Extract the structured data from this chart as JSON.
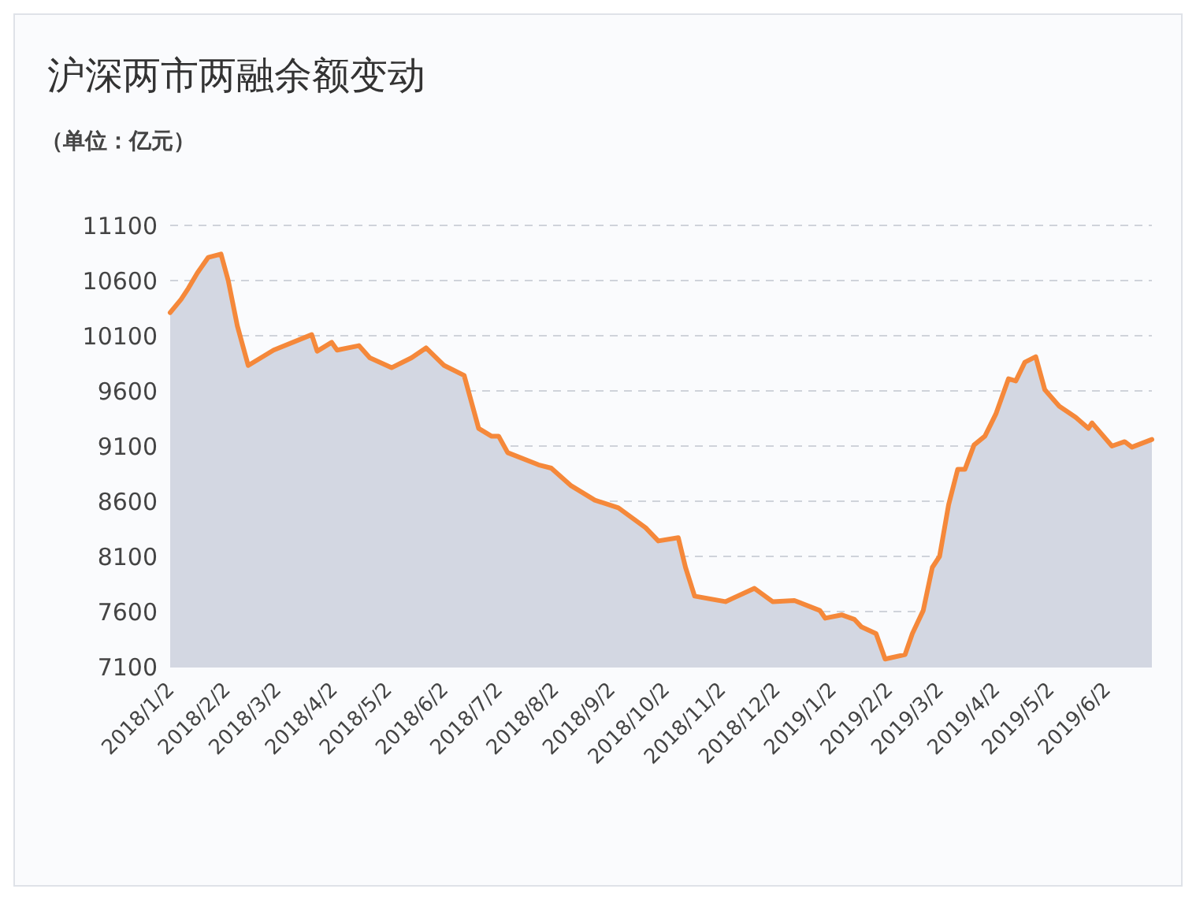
{
  "chart_data": {
    "type": "area",
    "title": "沪深两市两融余额变动",
    "subtitle": "（单位：亿元）",
    "x": [
      "2018-01-02",
      "2018-01-08",
      "2018-01-12",
      "2018-01-17",
      "2018-01-23",
      "2018-01-30",
      "2018-02-03",
      "2018-02-08",
      "2018-02-14",
      "2018-02-28",
      "2018-03-21",
      "2018-03-24",
      "2018-04-01",
      "2018-04-04",
      "2018-04-16",
      "2018-04-22",
      "2018-05-04",
      "2018-05-15",
      "2018-05-23",
      "2018-06-02",
      "2018-06-13",
      "2018-06-21",
      "2018-06-28",
      "2018-07-02",
      "2018-07-07",
      "2018-07-24",
      "2018-07-31",
      "2018-08-11",
      "2018-08-24",
      "2018-09-06",
      "2018-09-21",
      "2018-09-28",
      "2018-10-09",
      "2018-10-13",
      "2018-10-18",
      "2018-11-04",
      "2018-11-20",
      "2018-11-30",
      "2018-12-12",
      "2018-12-26",
      "2018-12-29",
      "2019-01-07",
      "2019-01-14",
      "2019-01-18",
      "2019-01-26",
      "2019-01-31",
      "2019-02-11",
      "2019-02-15",
      "2019-02-21",
      "2019-02-26",
      "2019-03-02",
      "2019-03-07",
      "2019-03-12",
      "2019-03-16",
      "2019-03-21",
      "2019-03-27",
      "2019-04-02",
      "2019-04-09",
      "2019-04-13",
      "2019-04-18",
      "2019-04-24",
      "2019-04-29",
      "2019-05-07",
      "2019-05-16",
      "2019-05-23",
      "2019-05-25",
      "2019-06-05",
      "2019-06-12",
      "2019-06-16",
      "2019-06-27"
    ],
    "series": [
      {
        "color": "#f5883a",
        "values": [
          10310,
          10430,
          10530,
          10670,
          10810,
          10840,
          10600,
          10190,
          9830,
          9970,
          10110,
          9960,
          10040,
          9970,
          10010,
          9900,
          9810,
          9900,
          9990,
          9830,
          9740,
          9260,
          9190,
          9190,
          9040,
          8930,
          8900,
          8740,
          8610,
          8540,
          8360,
          8240,
          8270,
          8000,
          7740,
          7690,
          7810,
          7690,
          7700,
          7610,
          7540,
          7570,
          7530,
          7460,
          7400,
          7170,
          7210,
          7400,
          7610,
          8000,
          8100,
          8570,
          8890,
          8890,
          9110,
          9190,
          9390,
          9710,
          9690,
          9860,
          9910,
          9610,
          9460,
          9360,
          9260,
          9310,
          9100,
          9140,
          9090,
          9160
        ]
      }
    ],
    "xlim": [
      "2018-01-02",
      "2019-06-27"
    ],
    "xticks": [
      {
        "value": "2018-01-02",
        "label": "2018/1/2"
      },
      {
        "value": "2018-02-02",
        "label": "2018/2/2"
      },
      {
        "value": "2018-03-02",
        "label": "2018/3/2"
      },
      {
        "value": "2018-04-02",
        "label": "2018/4/2"
      },
      {
        "value": "2018-05-02",
        "label": "2018/5/2"
      },
      {
        "value": "2018-06-02",
        "label": "2018/6/2"
      },
      {
        "value": "2018-07-02",
        "label": "2018/7/2"
      },
      {
        "value": "2018-08-02",
        "label": "2018/8/2"
      },
      {
        "value": "2018-09-02",
        "label": "2018/9/2"
      },
      {
        "value": "2018-10-02",
        "label": "2018/10/2"
      },
      {
        "value": "2018-11-02",
        "label": "2018/11/2"
      },
      {
        "value": "2018-12-02",
        "label": "2018/12/2"
      },
      {
        "value": "2019-01-02",
        "label": "2019/1/2"
      },
      {
        "value": "2019-02-02",
        "label": "2019/2/2"
      },
      {
        "value": "2019-03-02",
        "label": "2019/3/2"
      },
      {
        "value": "2019-04-02",
        "label": "2019/4/2"
      },
      {
        "value": "2019-05-02",
        "label": "2019/5/2"
      },
      {
        "value": "2019-06-02",
        "label": "2019/6/2"
      }
    ],
    "ylim": [
      7100,
      11100
    ],
    "yticks": [
      7100,
      7600,
      8100,
      8600,
      9100,
      9600,
      10100,
      10600,
      11100
    ],
    "grid": "y"
  }
}
